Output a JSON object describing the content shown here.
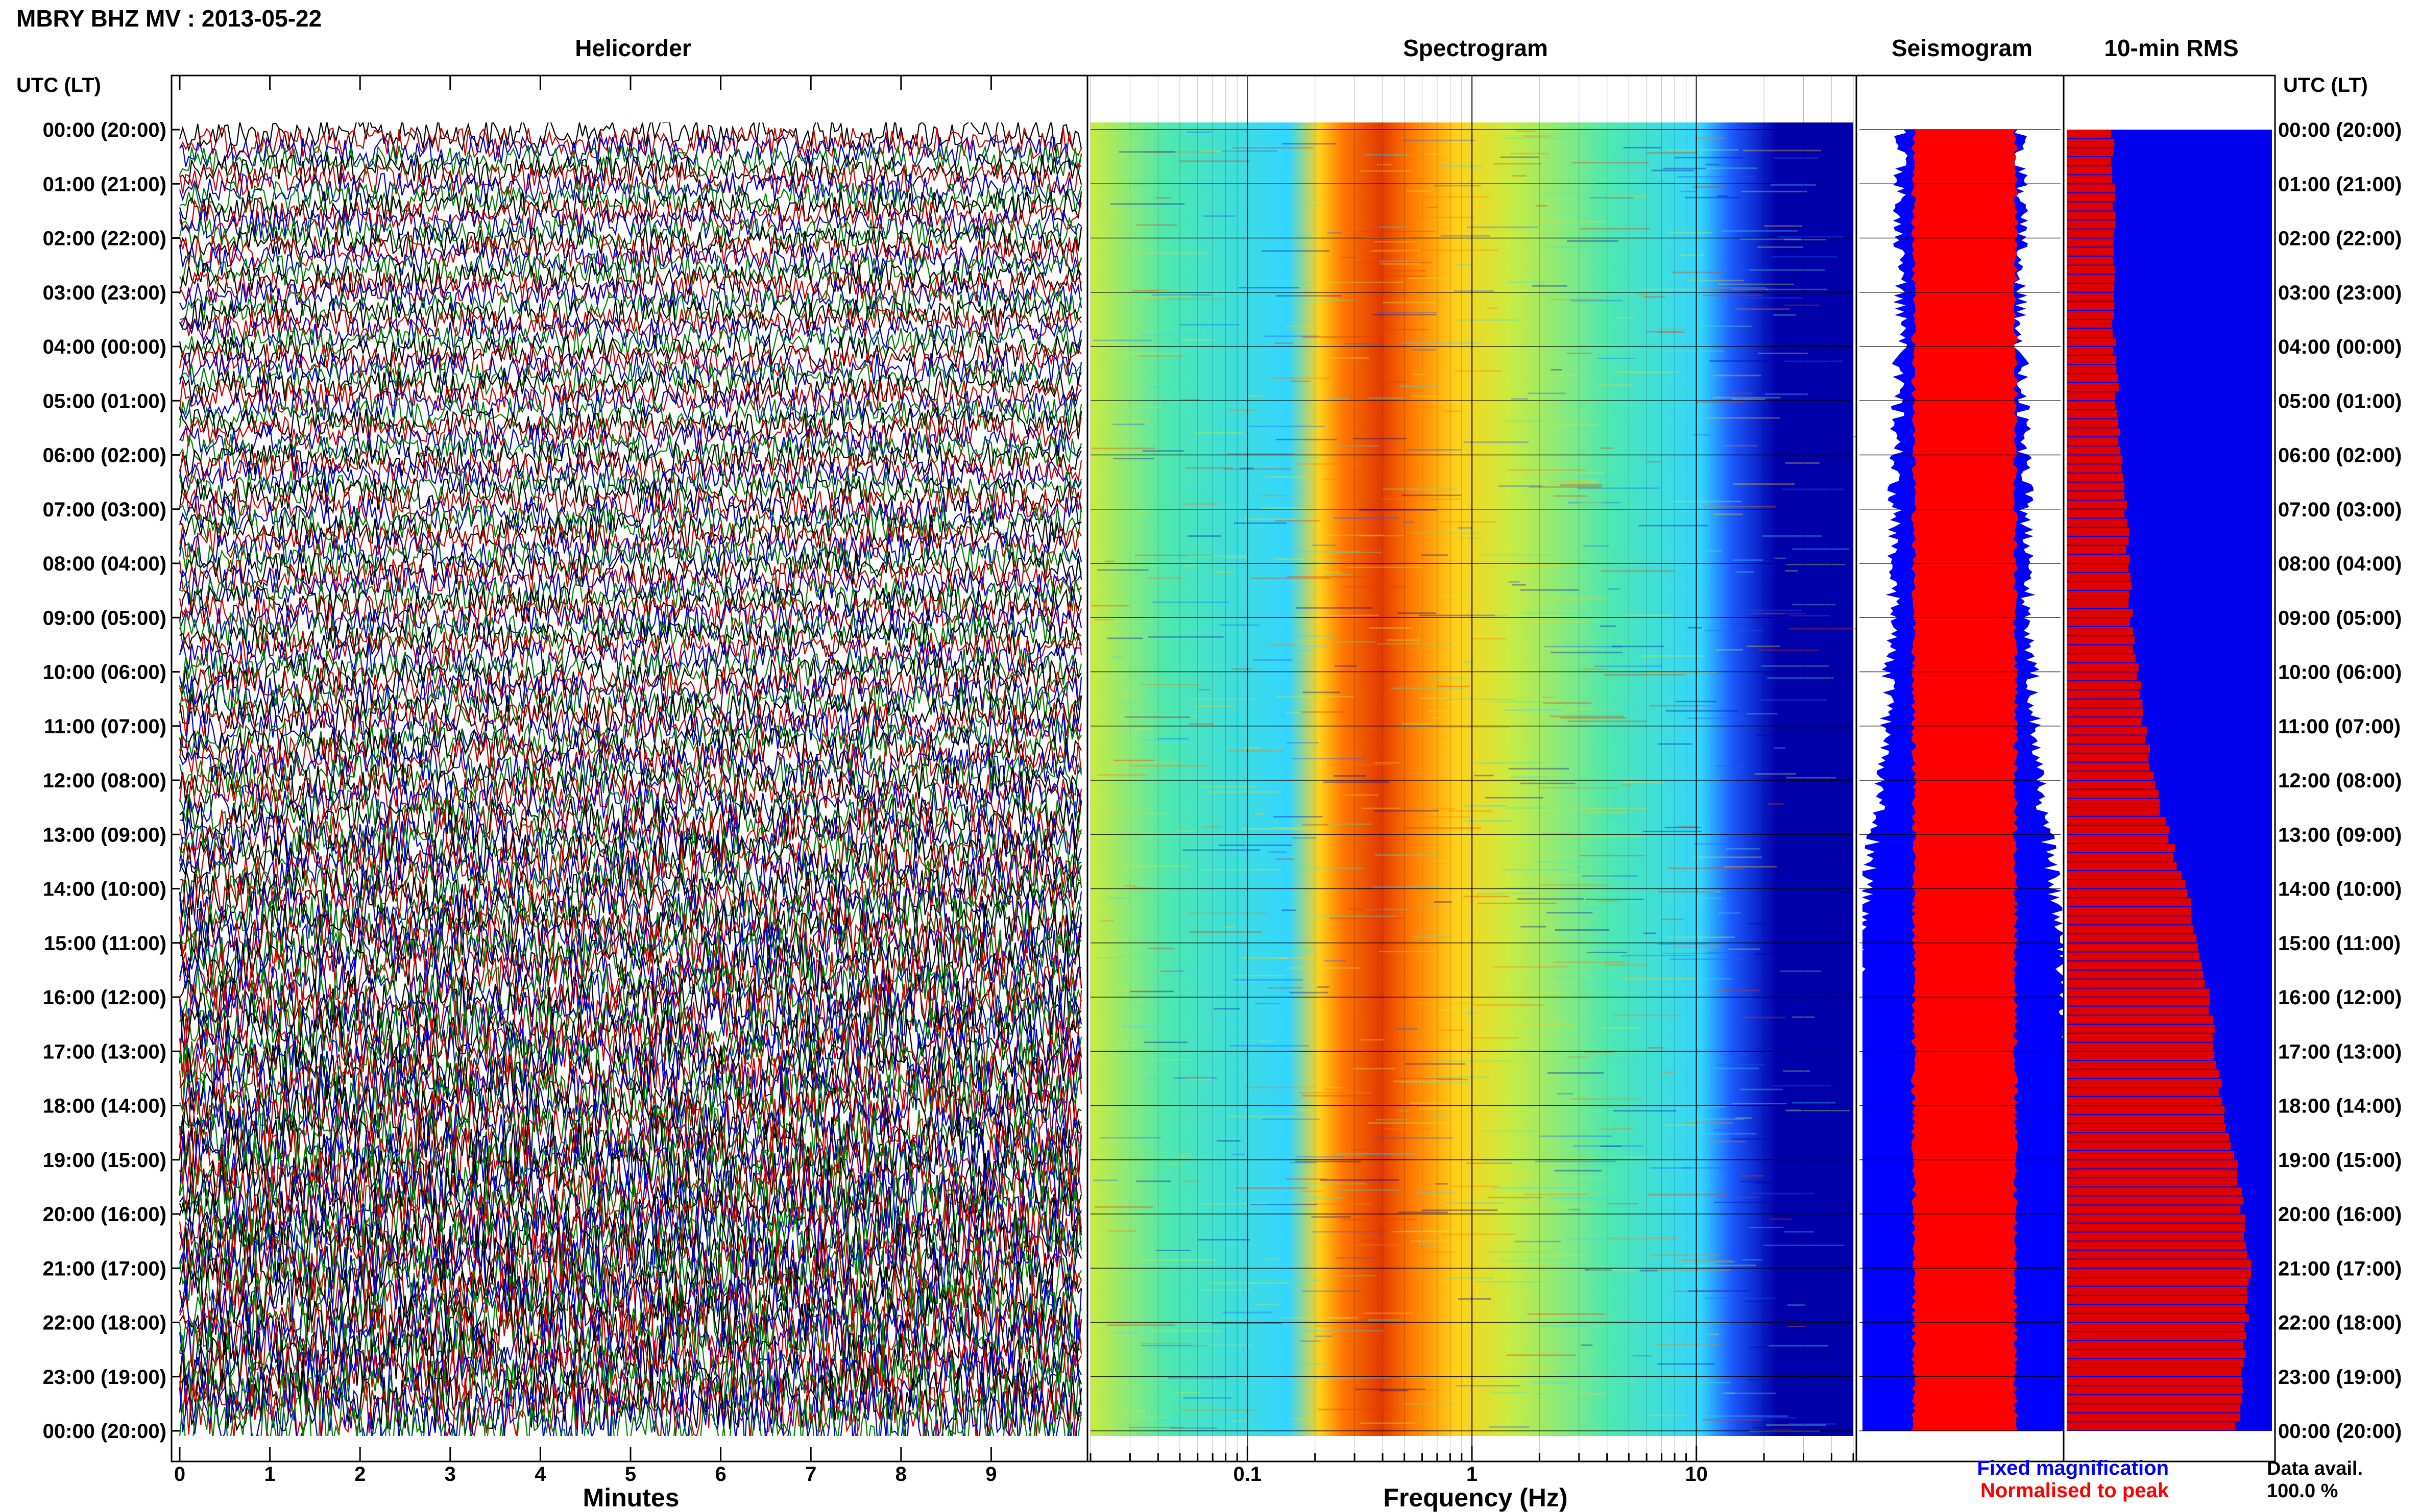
{
  "header": {
    "title": "MBRY BHZ MV : 2013-05-22",
    "utc_label_left": "UTC (LT)",
    "utc_label_right": "UTC (LT)"
  },
  "panels": {
    "helicorder": "Helicorder",
    "spectrogram": "Spectrogram",
    "seismogram": "Seismogram",
    "rms": "10-min RMS"
  },
  "axes": {
    "minutes_label": "Minutes",
    "frequency_label": "Frequency (Hz)",
    "minute_ticks": [
      "0",
      "1",
      "2",
      "3",
      "4",
      "5",
      "6",
      "7",
      "8",
      "9"
    ],
    "frequency_ticks": [
      "0.1",
      "1",
      "10"
    ]
  },
  "legend": {
    "fixed": "Fixed magnification",
    "normalised": "Normalised to peak",
    "fixed_color": "#0000ff",
    "normalised_color": "#ff0000"
  },
  "data_avail": {
    "label": "Data avail.",
    "value": "100.0 %"
  },
  "time_labels": [
    "00:00 (20:00)",
    "01:00 (21:00)",
    "02:00 (22:00)",
    "03:00 (23:00)",
    "04:00 (00:00)",
    "05:00 (01:00)",
    "06:00 (02:00)",
    "07:00 (03:00)",
    "08:00 (04:00)",
    "09:00 (05:00)",
    "10:00 (06:00)",
    "11:00 (07:00)",
    "12:00 (08:00)",
    "13:00 (09:00)",
    "14:00 (10:00)",
    "15:00 (11:00)",
    "16:00 (12:00)",
    "17:00 (13:00)",
    "18:00 (14:00)",
    "19:00 (15:00)",
    "20:00 (16:00)",
    "21:00 (17:00)",
    "22:00 (18:00)",
    "23:00 (19:00)",
    "00:00 (20:00)"
  ],
  "chart_data": {
    "type": "heatmap",
    "helicorder": {
      "x_range_minutes": [
        0,
        10
      ],
      "rows": 144,
      "trace_colors": [
        "#000000",
        "#cc0000",
        "#0000cc",
        "#008000"
      ]
    },
    "spectrogram": {
      "x_scale": "log",
      "x_range_hz": [
        0.02,
        50
      ],
      "colormap": [
        "#0000aa",
        "#1b5cff",
        "#33d6ff",
        "#4ee8b0",
        "#c8ec40",
        "#ffd11a",
        "#ff7a00",
        "#e33a00"
      ]
    },
    "seismogram": {
      "fixed_color": "#0000ff",
      "normalised_color": "#ff0000"
    },
    "rms_10min": {
      "bins_per_hour": 6,
      "relative_level_by_hour": [
        0.2,
        0.2,
        0.21,
        0.2,
        0.21,
        0.22,
        0.24,
        0.26,
        0.27,
        0.28,
        0.31,
        0.34,
        0.38,
        0.45,
        0.52,
        0.58,
        0.62,
        0.65,
        0.68,
        0.74,
        0.77,
        0.8,
        0.78,
        0.76,
        0.74
      ],
      "bar_color": "#e00000",
      "background_color": "#0000ee"
    }
  }
}
